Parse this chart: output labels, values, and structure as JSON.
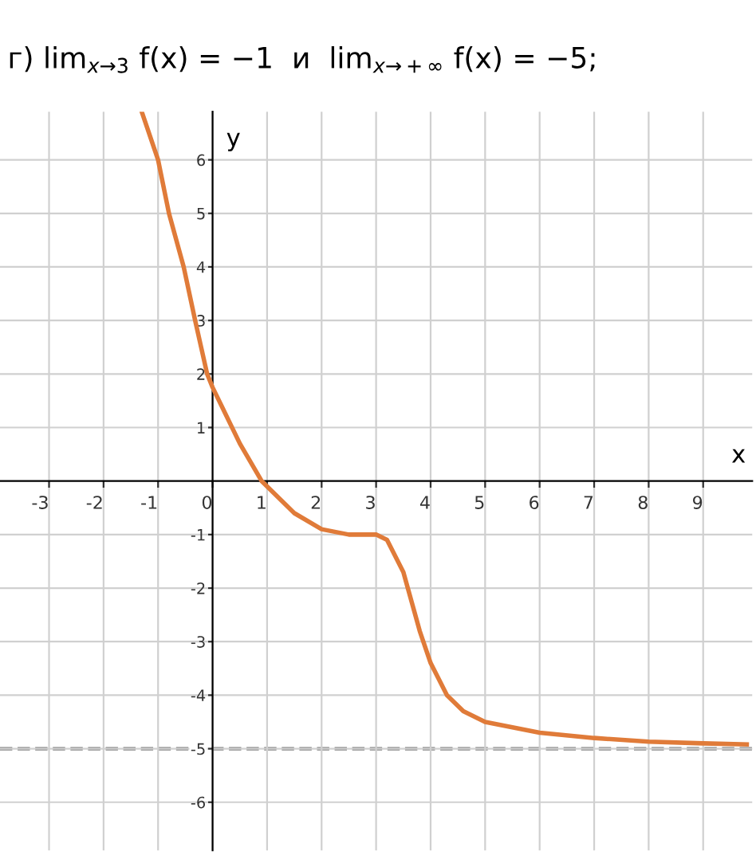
{
  "chart_data": {
    "type": "line",
    "title": "г) lim$_{x→3}$ f(x) = −1  и  lim$_{x→+∞}$ f(x) = −5;",
    "xlabel": "x",
    "ylabel": "y",
    "x": [
      -1.3,
      -1,
      -0.8,
      -0.53,
      -0.32,
      -0.1,
      0,
      0.5,
      0.9,
      1.5,
      2,
      2.5,
      3,
      3.2,
      3.5,
      3.8,
      4,
      4.3,
      4.6,
      5,
      6,
      7,
      8,
      9,
      9.8
    ],
    "series": [
      {
        "color": "#e07b39",
        "values": [
          6.9,
          6,
          5,
          4,
          3,
          2,
          1.75,
          0.7,
          0,
          -0.6,
          -0.9,
          -1,
          -1,
          -1.1,
          -1.7,
          -2.8,
          -3.4,
          -4.0,
          -4.3,
          -4.5,
          -4.7,
          -4.8,
          -4.87,
          -4.9,
          -4.92
        ]
      }
    ],
    "ref_lines": [
      {
        "axis": "y",
        "value": -5,
        "color": "#808080",
        "line_style": "dashed"
      }
    ],
    "xlim": [
      -3.9,
      9.9
    ],
    "ylim": [
      -6.9,
      6.9
    ],
    "xticks": [
      -3,
      -2,
      -1,
      0,
      1,
      2,
      3,
      4,
      5,
      6,
      7,
      8,
      9
    ],
    "yticks": [
      -6,
      -5,
      -4,
      -3,
      -2,
      -1,
      1,
      2,
      3,
      4,
      5,
      6
    ],
    "grid": true,
    "legend": false,
    "marker": "none",
    "line_style": "solid"
  }
}
